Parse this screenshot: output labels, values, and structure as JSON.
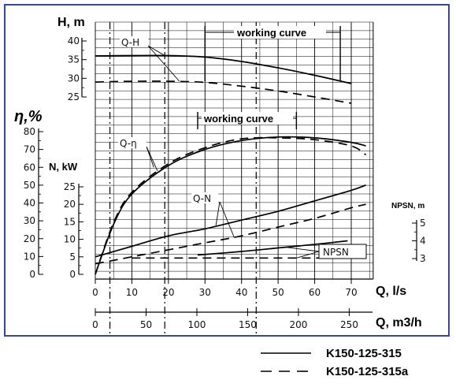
{
  "chart_data": {
    "type": "line",
    "axes": {
      "H": {
        "label": "H, m",
        "ticks": [
          25,
          30,
          35,
          40
        ],
        "range": [
          25,
          40
        ]
      },
      "eta": {
        "label": "η,%",
        "ticks": [
          0,
          10,
          20,
          30,
          40,
          50,
          60,
          70,
          80
        ],
        "range": [
          0,
          80
        ]
      },
      "N": {
        "label": "N, kW",
        "ticks": [
          0,
          5,
          10,
          15,
          20,
          25
        ],
        "range": [
          0,
          25
        ]
      },
      "NPSN": {
        "label": "NPSN, m",
        "ticks": [
          3,
          4,
          5
        ],
        "range": [
          3,
          5
        ]
      },
      "Q_ls": {
        "label": "Q, l/s",
        "ticks": [
          0,
          10,
          20,
          30,
          40,
          50,
          60,
          70
        ],
        "range": [
          0,
          76
        ]
      },
      "Q_m3h": {
        "label": "Q, m3/h",
        "ticks": [
          0,
          50,
          100,
          150,
          200,
          250
        ],
        "range": [
          0,
          273
        ]
      }
    },
    "annotations": {
      "working_curve_top": "working curve",
      "working_curve_mid": "working curve",
      "qh": "Q-H",
      "qeta": "Q-η",
      "qn": "Q-N",
      "npsn": "NPSN"
    },
    "working_range_ls": {
      "top": [
        30,
        67
      ],
      "mid": [
        28,
        55
      ]
    },
    "series": [
      {
        "name": "K150-125-315",
        "style": "solid",
        "curve": "Q-H",
        "axis": "H",
        "x": [
          0,
          10,
          20,
          30,
          40,
          50,
          60,
          70
        ],
        "y": [
          36,
          36.1,
          36.1,
          35.7,
          34.5,
          32.8,
          30.8,
          28.6
        ]
      },
      {
        "name": "K150-125-315a",
        "style": "dashed",
        "curve": "Q-H",
        "axis": "H",
        "x": [
          0,
          10,
          20,
          30,
          40,
          50,
          60,
          70
        ],
        "y": [
          29,
          29.2,
          29.2,
          28.9,
          27.9,
          26.6,
          25,
          23.3
        ]
      },
      {
        "name": "K150-125-315",
        "style": "solid",
        "curve": "Q-η",
        "axis": "eta",
        "x": [
          0,
          5,
          10,
          20,
          30,
          40,
          50,
          60,
          70,
          74
        ],
        "y": [
          0,
          28,
          45,
          61,
          70,
          75,
          77,
          76.5,
          74,
          72
        ]
      },
      {
        "name": "K150-125-315a",
        "style": "dashed",
        "curve": "Q-η",
        "axis": "eta",
        "x": [
          0,
          5,
          10,
          20,
          30,
          40,
          50,
          60,
          70,
          74
        ],
        "y": [
          0,
          29,
          46,
          62,
          71,
          76,
          76.5,
          75.5,
          72,
          67
        ]
      },
      {
        "name": "K150-125-315",
        "style": "solid",
        "curve": "Q-N",
        "axis": "N",
        "x": [
          0,
          10,
          20,
          30,
          40,
          50,
          60,
          70,
          74
        ],
        "y": [
          5,
          8,
          11,
          13,
          15.5,
          18,
          21,
          24,
          25.5
        ]
      },
      {
        "name": "K150-125-315a",
        "style": "dashed",
        "curve": "Q-N",
        "axis": "N",
        "x": [
          0,
          10,
          20,
          30,
          40,
          50,
          60,
          70,
          74
        ],
        "y": [
          3,
          5,
          7,
          9,
          11,
          13.5,
          16,
          19,
          20
        ]
      },
      {
        "name": "K150-125-315",
        "style": "solid",
        "curve": "NPSN",
        "axis": "NPSN",
        "x": [
          28,
          40,
          50,
          60,
          69
        ],
        "y": [
          3.2,
          3.4,
          3.6,
          3.8,
          4
        ]
      },
      {
        "name": "K150-125-315a",
        "style": "dashed",
        "curve": "NPSN",
        "axis": "NPSN",
        "x": [
          10,
          20,
          30,
          40,
          50,
          60,
          73
        ],
        "y": [
          3.03,
          3.03,
          3.03,
          3.03,
          3.03,
          3.03,
          3.03
        ]
      }
    ]
  },
  "legend": {
    "solid_label": "K150-125-315",
    "dashed_label": "K150-125-315a"
  }
}
